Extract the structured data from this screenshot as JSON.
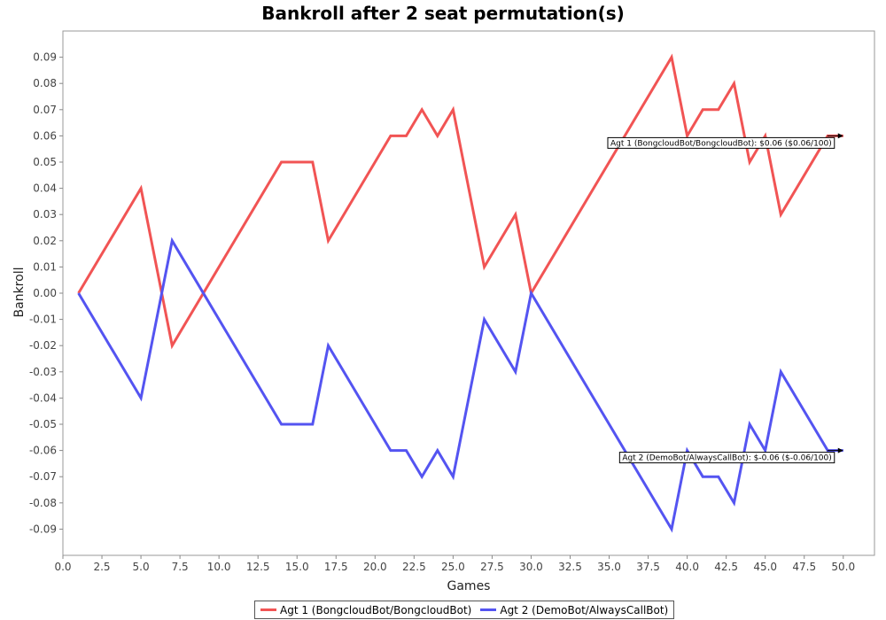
{
  "chart_data": {
    "type": "line",
    "title": "Bankroll after 2 seat permutation(s)",
    "xlabel": "Games",
    "ylabel": "Bankroll",
    "xlim": [
      0.0,
      52.0
    ],
    "ylim": [
      -0.1,
      0.1
    ],
    "x_ticks": [
      "0.0",
      "2.5",
      "5.0",
      "7.5",
      "10.0",
      "12.5",
      "15.0",
      "17.5",
      "20.0",
      "22.5",
      "25.0",
      "27.5",
      "30.0",
      "32.5",
      "35.0",
      "37.5",
      "40.0",
      "42.5",
      "45.0",
      "47.5",
      "50.0"
    ],
    "y_ticks": [
      "0.09",
      "0.08",
      "0.07",
      "0.06",
      "0.05",
      "0.04",
      "0.03",
      "0.02",
      "0.01",
      "0.00",
      "-0.01",
      "-0.02",
      "-0.03",
      "-0.04",
      "-0.05",
      "-0.06",
      "-0.07",
      "-0.08",
      "-0.09"
    ],
    "grid": false,
    "legend_position": "bottom",
    "series": [
      {
        "name": "Agt 1 (BongcloudBot/BongcloudBot)",
        "color": "#f15454",
        "x": [
          1,
          5,
          7,
          14,
          16,
          17,
          21,
          22,
          23,
          24,
          25,
          27,
          29,
          30,
          39,
          40,
          41,
          42,
          43,
          44,
          45,
          46,
          49,
          50
        ],
        "y": [
          0.0,
          0.04,
          -0.02,
          0.05,
          0.05,
          0.02,
          0.06,
          0.06,
          0.07,
          0.06,
          0.07,
          0.01,
          0.03,
          0.0,
          0.09,
          0.06,
          0.07,
          0.07,
          0.08,
          0.05,
          0.06,
          0.03,
          0.06,
          0.06
        ],
        "annotation": "Agt 1 (BongcloudBot/BongcloudBot): $0.06 ($0.06/100)"
      },
      {
        "name": "Agt 2 (DemoBot/AlwaysCallBot)",
        "color": "#5454f1",
        "x": [
          1,
          5,
          7,
          14,
          16,
          17,
          21,
          22,
          23,
          24,
          25,
          27,
          29,
          30,
          39,
          40,
          41,
          42,
          43,
          44,
          45,
          46,
          49,
          50
        ],
        "y": [
          0.0,
          -0.04,
          0.02,
          -0.05,
          -0.05,
          -0.02,
          -0.06,
          -0.06,
          -0.07,
          -0.06,
          -0.07,
          -0.01,
          -0.03,
          0.0,
          -0.09,
          -0.06,
          -0.07,
          -0.07,
          -0.08,
          -0.05,
          -0.06,
          -0.03,
          -0.06,
          -0.06
        ],
        "annotation": "Agt 2 (DemoBot/AlwaysCallBot): $-0.06 ($-0.06/100)"
      }
    ]
  }
}
